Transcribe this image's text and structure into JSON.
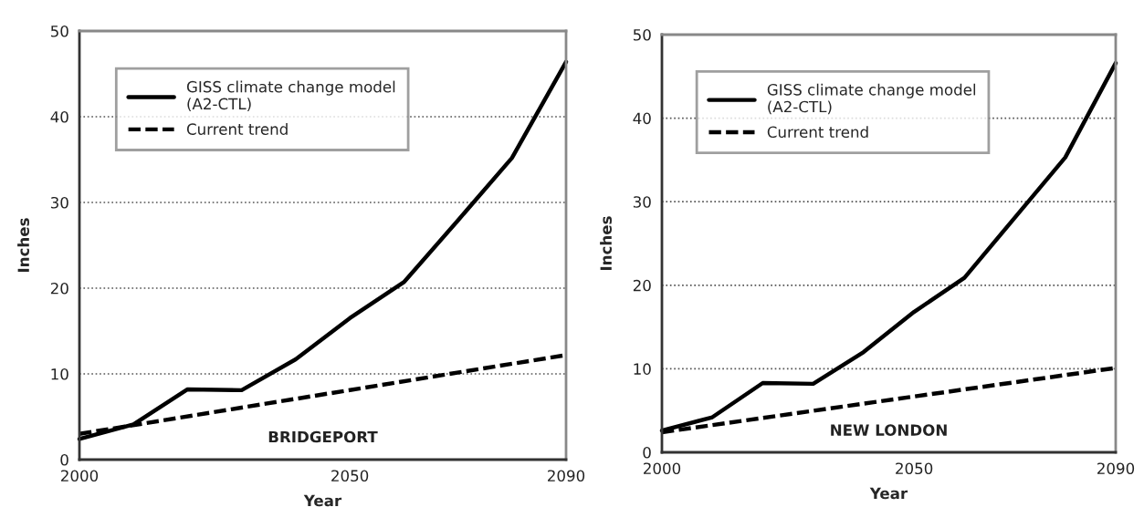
{
  "chart_data": [
    {
      "type": "line",
      "xlabel": "Year",
      "ylabel": "Inches",
      "xlim": [
        2000,
        2090
      ],
      "xticks": [
        2000,
        2050,
        2090
      ],
      "ylim": [
        0,
        50
      ],
      "yticks": [
        0,
        10,
        20,
        30,
        40,
        50
      ],
      "grid": "y",
      "legend": "top left",
      "annotations": [
        "BRIDGEPORT"
      ],
      "series": [
        {
          "name": "GISS climate change model\n(A2-CTL)",
          "color": "#000000",
          "line_style": "solid",
          "x": [
            2000,
            2010,
            2020,
            2030,
            2040,
            2050,
            2060,
            2070,
            2080,
            2090
          ],
          "values": [
            2.4,
            4.1,
            8.2,
            8.1,
            11.7,
            16.5,
            20.7,
            27.9,
            35.2,
            46.4
          ]
        },
        {
          "name": "Current trend",
          "color": "#000000",
          "line_style": "dashed",
          "x": [
            2000,
            2090
          ],
          "values": [
            3.0,
            12.2
          ]
        }
      ]
    },
    {
      "type": "line",
      "xlabel": "Year",
      "ylabel": "Inches",
      "xlim": [
        2000,
        2090
      ],
      "xticks": [
        2000,
        2050,
        2090
      ],
      "ylim": [
        0,
        50
      ],
      "yticks": [
        0,
        10,
        20,
        30,
        40,
        50
      ],
      "grid": "y",
      "legend": "top left",
      "annotations": [
        "NEW LONDON"
      ],
      "series": [
        {
          "name": "GISS climate change model\n(A2-CTL)",
          "color": "#000000",
          "line_style": "solid",
          "x": [
            2000,
            2010,
            2020,
            2030,
            2040,
            2050,
            2060,
            2070,
            2080,
            2090
          ],
          "values": [
            2.6,
            4.2,
            8.3,
            8.2,
            12.0,
            16.8,
            20.9,
            28.1,
            35.3,
            46.6
          ]
        },
        {
          "name": "Current trend",
          "color": "#000000",
          "line_style": "dashed",
          "x": [
            2000,
            2090
          ],
          "values": [
            2.4,
            10.1
          ]
        }
      ]
    }
  ]
}
